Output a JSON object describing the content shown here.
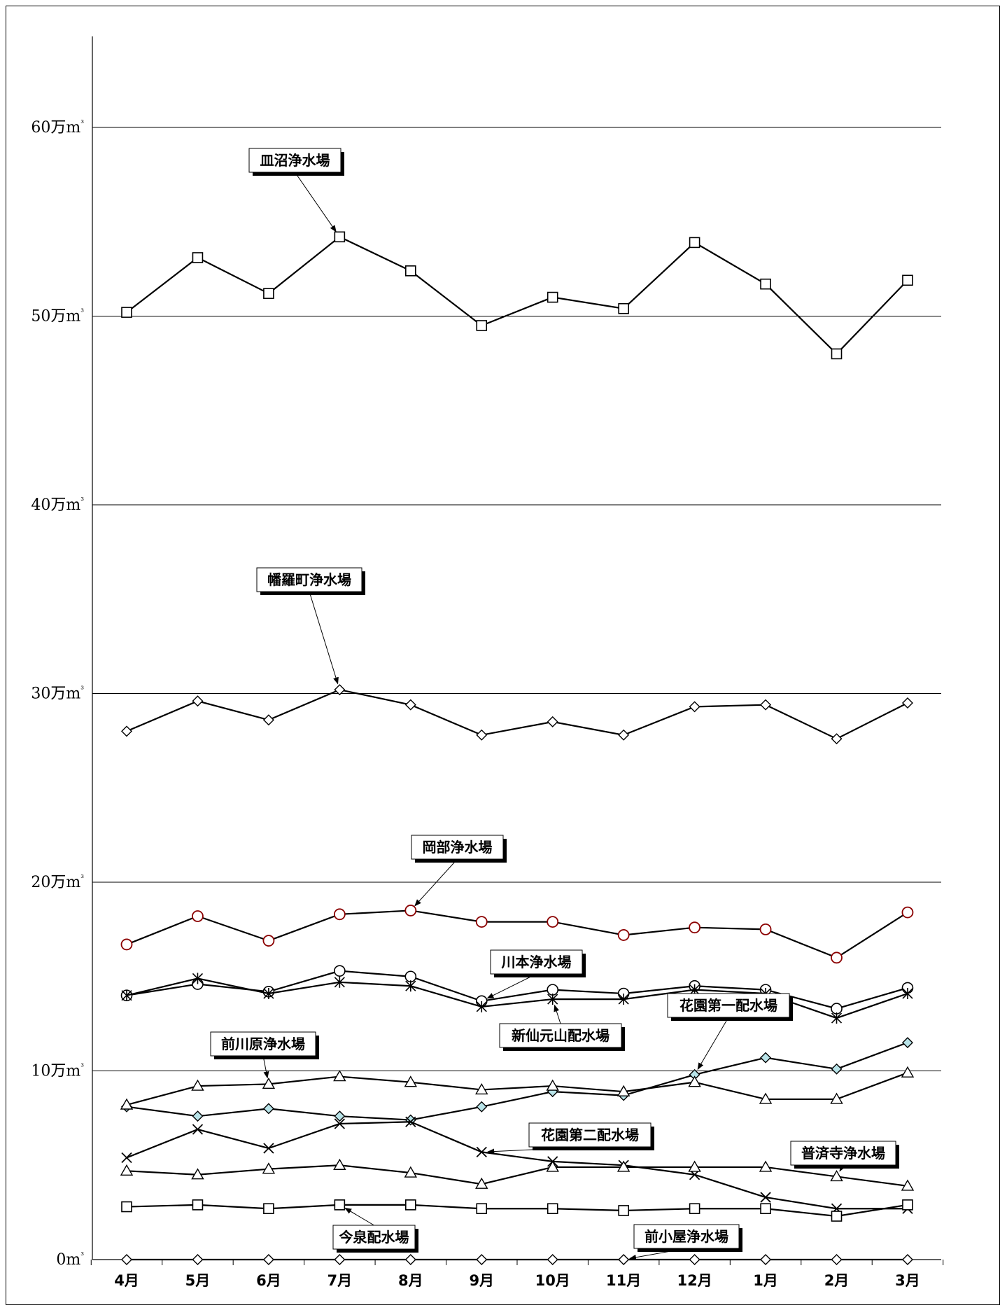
{
  "chart_data": {
    "type": "line",
    "title": "",
    "xlabel": "",
    "ylabel": "",
    "categories": [
      "4月",
      "5月",
      "6月",
      "7月",
      "8月",
      "9月",
      "10月",
      "11月",
      "12月",
      "1月",
      "2月",
      "3月"
    ],
    "ylim": [
      0,
      65
    ],
    "yticks": [
      {
        "value": 0,
        "label": "0m³"
      },
      {
        "value": 10,
        "label": "10万m³"
      },
      {
        "value": 20,
        "label": "20万m³"
      },
      {
        "value": 30,
        "label": "30万m³"
      },
      {
        "value": 40,
        "label": "40万m³"
      },
      {
        "value": 50,
        "label": "50万m³"
      },
      {
        "value": 60,
        "label": "60万m³"
      }
    ],
    "grid": true,
    "legend": "none",
    "series": [
      {
        "name": "皿沼浄水場",
        "marker": "square",
        "color": "#000000",
        "values": [
          50.2,
          53.1,
          51.2,
          54.2,
          52.4,
          49.5,
          51.0,
          50.4,
          53.9,
          51.7,
          48.0,
          51.9
        ]
      },
      {
        "name": "幡羅町浄水場",
        "marker": "diamond",
        "color": "#000000",
        "values": [
          28.0,
          29.6,
          28.6,
          30.2,
          29.4,
          27.8,
          28.5,
          27.8,
          29.3,
          29.4,
          27.6,
          29.5
        ]
      },
      {
        "name": "岡部浄水場",
        "marker": "circle-red",
        "color": "#000000",
        "markerColor": "#8b0000",
        "values": [
          16.7,
          18.2,
          16.9,
          18.3,
          18.5,
          17.9,
          17.9,
          17.2,
          17.6,
          17.5,
          16.0,
          18.4
        ]
      },
      {
        "name": "川本浄水場",
        "marker": "circle",
        "color": "#000000",
        "values": [
          14.0,
          14.6,
          14.2,
          15.3,
          15.0,
          13.7,
          14.3,
          14.1,
          14.5,
          14.3,
          13.3,
          14.4
        ]
      },
      {
        "name": "新仙元山配水場",
        "marker": "asterisk",
        "color": "#000000",
        "values": [
          14.0,
          14.9,
          14.1,
          14.7,
          14.5,
          13.4,
          13.8,
          13.8,
          14.3,
          14.1,
          12.8,
          14.1
        ]
      },
      {
        "name": "花園第一配水場",
        "marker": "diamond-cyan",
        "color": "#000000",
        "markerColor": "#b8e3e8",
        "values": [
          8.1,
          7.6,
          8.0,
          7.6,
          7.4,
          8.1,
          8.9,
          8.7,
          9.8,
          10.7,
          10.1,
          11.5
        ]
      },
      {
        "name": "前川原浄水場",
        "marker": "triangle",
        "color": "#000000",
        "values": [
          8.2,
          9.2,
          9.3,
          9.7,
          9.4,
          9.0,
          9.2,
          8.9,
          9.4,
          8.5,
          8.5,
          9.9
        ]
      },
      {
        "name": "花園第二配水場",
        "marker": "x",
        "color": "#000000",
        "values": [
          5.4,
          6.9,
          5.9,
          7.2,
          7.3,
          5.7,
          5.2,
          5.0,
          4.5,
          3.3,
          2.7,
          2.7
        ]
      },
      {
        "name": "普済寺浄水場",
        "marker": "triangle",
        "color": "#000000",
        "values": [
          4.7,
          4.5,
          4.8,
          5.0,
          4.6,
          4.0,
          4.9,
          4.9,
          4.9,
          4.9,
          4.4,
          3.9
        ]
      },
      {
        "name": "今泉配水場",
        "marker": "square",
        "color": "#000000",
        "values": [
          2.8,
          2.9,
          2.7,
          2.9,
          2.9,
          2.7,
          2.7,
          2.6,
          2.7,
          2.7,
          2.3,
          2.9
        ]
      },
      {
        "name": "前小屋浄水場",
        "marker": "diamond",
        "color": "#000000",
        "values": [
          0,
          0,
          0,
          0,
          0,
          0,
          0,
          0,
          0,
          0,
          0,
          0
        ]
      }
    ],
    "annotations": [
      {
        "text": "皿沼浄水場",
        "series": 0,
        "pointIndex": 3
      },
      {
        "text": "幡羅町浄水場",
        "series": 1,
        "pointIndex": 3
      },
      {
        "text": "岡部浄水場",
        "series": 2,
        "pointIndex": 4
      },
      {
        "text": "川本浄水場",
        "series": 3,
        "pointIndex": 5
      },
      {
        "text": "新仙元山配水場",
        "series": 4,
        "pointIndex": 6
      },
      {
        "text": "花園第一配水場",
        "series": 5,
        "pointIndex": 8
      },
      {
        "text": "前川原浄水場",
        "series": 6,
        "pointIndex": 2
      },
      {
        "text": "花園第二配水場",
        "series": 7,
        "pointIndex": 5
      },
      {
        "text": "普済寺浄水場",
        "series": 8,
        "pointIndex": 10
      },
      {
        "text": "今泉配水場",
        "series": 9,
        "pointIndex": 3
      },
      {
        "text": "前小屋浄水場",
        "series": 10,
        "pointIndex": 7
      }
    ]
  }
}
